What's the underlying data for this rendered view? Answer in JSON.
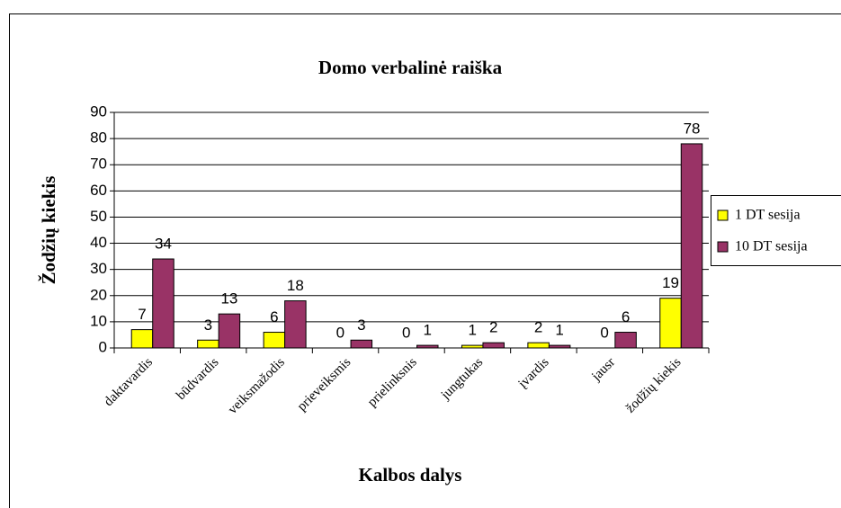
{
  "chart_data": {
    "type": "bar",
    "title": "Domo verbalinė raiška",
    "x_label": "Kalbos dalys",
    "y_label": "Žodžių kiekis",
    "categories": [
      "daktavardis",
      "būdvardis",
      "veiksmažodis",
      "prieveiksmis",
      "prielinksnis",
      "jungtukas",
      "įvardis",
      "jausr",
      "žodžių kiekis"
    ],
    "series": [
      {
        "name": "1 DT sesija",
        "color": "#ffff00",
        "values": [
          7,
          3,
          6,
          0,
          0,
          1,
          2,
          0,
          19
        ]
      },
      {
        "name": "10 DT sesija",
        "color": "#993366",
        "values": [
          34,
          13,
          18,
          3,
          1,
          2,
          1,
          6,
          78
        ]
      }
    ],
    "ylim": [
      0,
      90
    ],
    "yticks": [
      0,
      10,
      20,
      30,
      40,
      50,
      60,
      70,
      80,
      90
    ],
    "grid": true,
    "legend": "right"
  }
}
